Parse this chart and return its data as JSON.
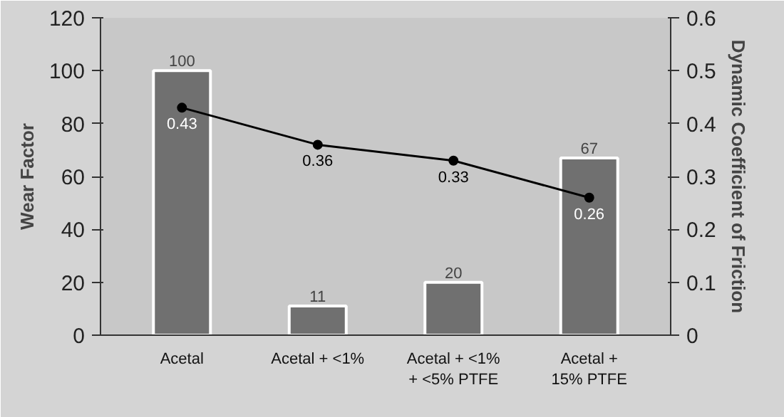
{
  "chart_data": {
    "type": "bar",
    "ylabel": "Wear Factor",
    "y2label": "Dynamic Coefficient of Friction",
    "categories": [
      "Acetal",
      "Acetal + <1%",
      "Acetal + <1%\n+ <5% PTFE",
      "Acetal +\n15% PTFE"
    ],
    "series": [
      {
        "color": "#707070",
        "values": [
          100,
          11,
          20,
          67
        ]
      },
      {
        "type": "line",
        "axis": "y2",
        "color": "#000000",
        "values": [
          0.43,
          0.36,
          0.33,
          0.26
        ],
        "marker": "circle",
        "line_style": "solid"
      }
    ],
    "ylim": [
      0,
      120
    ],
    "yticks": [
      0,
      20,
      40,
      60,
      80,
      100,
      120
    ],
    "y2lim": [
      0,
      0.6
    ],
    "y2ticks": [
      0,
      0.1,
      0.2,
      0.3,
      0.4,
      0.5,
      0.6
    ],
    "data_labels": true,
    "grid": false
  }
}
